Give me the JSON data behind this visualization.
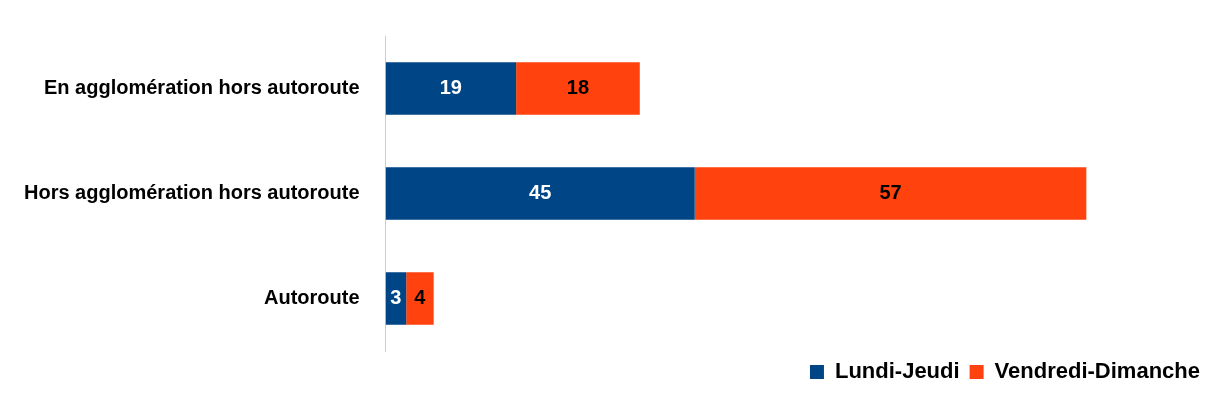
{
  "chart_data": {
    "type": "bar",
    "orientation": "horizontal",
    "stacked": true,
    "categories": [
      "En agglomération hors autoroute",
      "Hors agglomération hors autoroute",
      "Autoroute"
    ],
    "series": [
      {
        "name": "Lundi-Jeudi",
        "color": "#004586",
        "values": [
          19,
          45,
          3
        ]
      },
      {
        "name": "Vendredi-Dimanche",
        "color": "#ff420e",
        "values": [
          18,
          57,
          4
        ]
      }
    ],
    "data_labels": true,
    "legend": "bottom right",
    "grid": false
  }
}
